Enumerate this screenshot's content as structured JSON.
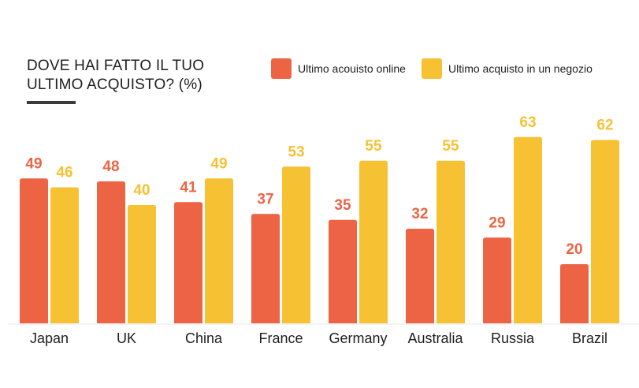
{
  "chart_data": {
    "type": "bar",
    "title_lines": [
      "DOVE HAI FATTO IL TUO",
      "ULTIMO ACQUISTO? (%)"
    ],
    "categories": [
      "Japan",
      "UK",
      "China",
      "France",
      "Germany",
      "Australia",
      "Russia",
      "Brazil"
    ],
    "series": [
      {
        "name": "Ultimo acouisto online",
        "color": "#ec6444",
        "values": [
          49,
          48,
          41,
          37,
          35,
          32,
          29,
          20
        ]
      },
      {
        "name": "Ultimo acquisto in un negozio",
        "color": "#f6c133",
        "values": [
          46,
          40,
          49,
          53,
          55,
          55,
          63,
          62
        ]
      }
    ],
    "ylim": [
      0,
      63
    ],
    "grid": false,
    "legend_position": "top-right"
  }
}
